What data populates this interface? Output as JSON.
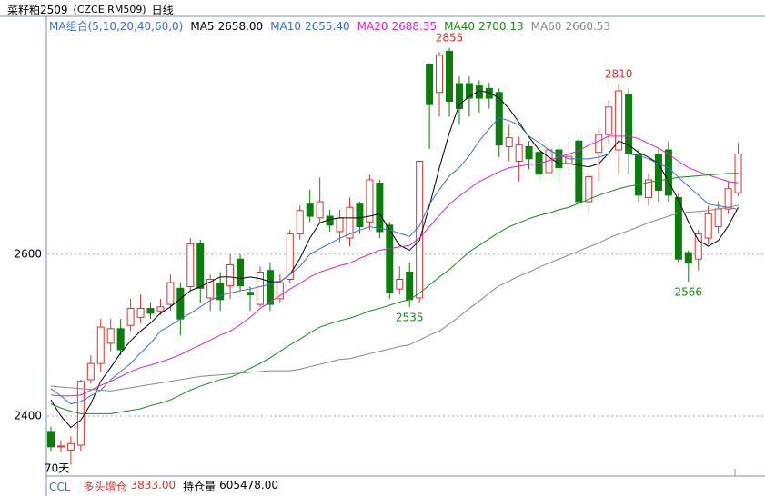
{
  "chart_data": {
    "type": "candlestick",
    "title": "菜籽粕2509",
    "subtitle": "(CZCE RM509)",
    "period": "日线",
    "indicator_group": "MA组合(5,10,20,40,60,0)",
    "days_label": "70天",
    "up_color": "#e0302e",
    "down_color": "#0b7d0b",
    "ylim": [
      2336,
      2875
    ],
    "yticks": [
      2400,
      2600
    ],
    "grid": true,
    "open": [
      2381,
      2362,
      2358,
      2364,
      2445,
      2465,
      2490,
      2508,
      2512,
      2522,
      2533,
      2530,
      2538,
      2558,
      2560,
      2613,
      2546,
      2564,
      2561,
      2594,
      2553,
      2538,
      2580,
      2545,
      2569,
      2625,
      2662,
      2645,
      2647,
      2628,
      2620,
      2662,
      2640,
      2688,
      2636,
      2557,
      2578,
      2546,
      2834,
      2800,
      2851,
      2811,
      2811,
      2808,
      2805,
      2800,
      2733,
      2715,
      2733,
      2726,
      2701,
      2729,
      2712,
      2740,
      2665,
      2726,
      2748,
      2729,
      2797,
      2724,
      2670,
      2724,
      2729,
      2670,
      2602,
      2594,
      2620,
      2634,
      2656,
      2676
    ],
    "high": [
      2387,
      2370,
      2375,
      2445,
      2475,
      2520,
      2520,
      2520,
      2545,
      2550,
      2540,
      2545,
      2575,
      2565,
      2620,
      2618,
      2575,
      2578,
      2600,
      2600,
      2560,
      2585,
      2590,
      2575,
      2630,
      2660,
      2680,
      2695,
      2655,
      2655,
      2670,
      2665,
      2698,
      2692,
      2640,
      2585,
      2590,
      2715,
      2836,
      2850,
      2855,
      2820,
      2820,
      2815,
      2812,
      2805,
      2760,
      2745,
      2740,
      2735,
      2740,
      2735,
      2740,
      2745,
      2700,
      2755,
      2790,
      2810,
      2805,
      2730,
      2700,
      2730,
      2740,
      2675,
      2605,
      2630,
      2660,
      2665,
      2690,
      2738
    ],
    "low": [
      2356,
      2355,
      2340,
      2356,
      2440,
      2455,
      2480,
      2475,
      2505,
      2515,
      2520,
      2525,
      2530,
      2500,
      2555,
      2540,
      2530,
      2530,
      2545,
      2555,
      2530,
      2535,
      2530,
      2540,
      2565,
      2618,
      2640,
      2640,
      2628,
      2615,
      2610,
      2625,
      2630,
      2620,
      2545,
      2550,
      2535,
      2540,
      2730,
      2770,
      2770,
      2760,
      2770,
      2775,
      2780,
      2720,
      2715,
      2690,
      2705,
      2690,
      2695,
      2690,
      2700,
      2660,
      2650,
      2690,
      2735,
      2700,
      2700,
      2665,
      2660,
      2665,
      2665,
      2590,
      2566,
      2580,
      2612,
      2625,
      2650,
      2672
    ],
    "close": [
      2362,
      2363,
      2366,
      2443,
      2465,
      2510,
      2508,
      2482,
      2533,
      2533,
      2527,
      2535,
      2565,
      2520,
      2613,
      2558,
      2569,
      2544,
      2587,
      2561,
      2550,
      2578,
      2538,
      2565,
      2625,
      2654,
      2647,
      2665,
      2636,
      2645,
      2658,
      2634,
      2692,
      2628,
      2553,
      2569,
      2544,
      2715,
      2785,
      2846,
      2789,
      2780,
      2793,
      2793,
      2793,
      2735,
      2744,
      2735,
      2718,
      2699,
      2729,
      2707,
      2721,
      2665,
      2696,
      2748,
      2782,
      2802,
      2724,
      2673,
      2692,
      2679,
      2673,
      2594,
      2589,
      2625,
      2650,
      2656,
      2681,
      2724
    ],
    "series": [
      {
        "name": "MA5",
        "color": "#000000",
        "value_label": "2658.00",
        "values": [
          2420,
          2400,
          2386,
          2395,
          2415,
          2443,
          2460,
          2478,
          2493,
          2505,
          2515,
          2527,
          2535,
          2545,
          2555,
          2560,
          2566,
          2572,
          2572,
          2570,
          2572,
          2570,
          2566,
          2566,
          2575,
          2595,
          2620,
          2639,
          2643,
          2645,
          2645,
          2645,
          2647,
          2650,
          2630,
          2611,
          2605,
          2617,
          2660,
          2707,
          2750,
          2785,
          2795,
          2802,
          2800,
          2793,
          2780,
          2763,
          2745,
          2729,
          2720,
          2712,
          2712,
          2710,
          2708,
          2712,
          2725,
          2740,
          2735,
          2726,
          2720,
          2712,
          2690,
          2667,
          2640,
          2617,
          2610,
          2617,
          2635,
          2658
        ]
      },
      {
        "name": "MA10",
        "color": "#3a6fd8",
        "value_label": "2655.40",
        "values": [
          2434,
          2425,
          2415,
          2418,
          2425,
          2432,
          2445,
          2455,
          2465,
          2478,
          2490,
          2505,
          2512,
          2520,
          2527,
          2535,
          2543,
          2549,
          2552,
          2555,
          2557,
          2560,
          2563,
          2566,
          2575,
          2585,
          2600,
          2607,
          2613,
          2620,
          2625,
          2630,
          2634,
          2632,
          2630,
          2626,
          2622,
          2635,
          2662,
          2680,
          2697,
          2707,
          2722,
          2740,
          2755,
          2769,
          2765,
          2760,
          2746,
          2738,
          2729,
          2723,
          2718,
          2718,
          2718,
          2720,
          2724,
          2724,
          2724,
          2722,
          2718,
          2712,
          2707,
          2695,
          2684,
          2673,
          2662,
          2660,
          2658,
          2655.4
        ]
      },
      {
        "name": "MA20",
        "color": "#e020c8",
        "value_label": "2688.35",
        "values": [
          2426,
          2425,
          2425,
          2426,
          2432,
          2438,
          2443,
          2449,
          2455,
          2460,
          2463,
          2467,
          2471,
          2476,
          2482,
          2488,
          2494,
          2500,
          2505,
          2513,
          2522,
          2533,
          2541,
          2549,
          2557,
          2564,
          2572,
          2578,
          2582,
          2586,
          2589,
          2595,
          2600,
          2605,
          2607,
          2609,
          2611,
          2620,
          2634,
          2648,
          2662,
          2672,
          2681,
          2690,
          2696,
          2702,
          2707,
          2709,
          2711,
          2712,
          2716,
          2720,
          2724,
          2728,
          2735,
          2740,
          2746,
          2746,
          2746,
          2743,
          2737,
          2731,
          2724,
          2715,
          2707,
          2702,
          2698,
          2694,
          2690,
          2688.35
        ]
      },
      {
        "name": "MA40",
        "color": "#1a8a1a",
        "value_label": "2700.13",
        "values": [
          2415,
          2410,
          2406,
          2403,
          2403,
          2403,
          2403,
          2405,
          2407,
          2409,
          2413,
          2416,
          2420,
          2426,
          2432,
          2437,
          2441,
          2445,
          2448,
          2453,
          2459,
          2465,
          2472,
          2480,
          2488,
          2495,
          2503,
          2510,
          2514,
          2518,
          2521,
          2525,
          2530,
          2533,
          2537,
          2541,
          2544,
          2552,
          2562,
          2572,
          2581,
          2592,
          2603,
          2611,
          2619,
          2627,
          2634,
          2639,
          2644,
          2648,
          2651,
          2655,
          2658,
          2663,
          2668,
          2673,
          2677,
          2681,
          2684,
          2686,
          2689,
          2691,
          2693,
          2695,
          2696,
          2697,
          2698,
          2699,
          2700,
          2700.13
        ]
      },
      {
        "name": "MA60",
        "color": "#888888",
        "value_label": "2660.53",
        "values": [
          2437,
          2436,
          2435,
          2434,
          2433,
          2432,
          2431,
          2433,
          2435,
          2437,
          2439,
          2441,
          2443,
          2445,
          2447,
          2449,
          2450,
          2451,
          2452,
          2453,
          2454,
          2455,
          2456,
          2456,
          2456,
          2458,
          2461,
          2464,
          2467,
          2470,
          2471,
          2474,
          2477,
          2480,
          2483,
          2486,
          2488,
          2494,
          2500,
          2505,
          2514,
          2523,
          2533,
          2542,
          2552,
          2561,
          2567,
          2573,
          2578,
          2584,
          2589,
          2594,
          2599,
          2604,
          2609,
          2614,
          2620,
          2625,
          2629,
          2634,
          2639,
          2643,
          2647,
          2651,
          2652,
          2653,
          2654,
          2656,
          2658,
          2660.53
        ]
      }
    ],
    "annotations": [
      {
        "x": 40,
        "value": 2855,
        "color": "#e0302e"
      },
      {
        "x": 57,
        "value": 2810,
        "color": "#e0302e"
      },
      {
        "x": 36,
        "value": 2535,
        "color": "#1a8a1a"
      },
      {
        "x": 64,
        "value": 2566,
        "color": "#1a8a1a"
      }
    ],
    "footer": {
      "name": "CCL",
      "items": [
        {
          "label": "多头增仓",
          "value": {
            "value": 3833,
            "label": "3833.00"
          },
          "color": "#e0302e"
        },
        {
          "label": "持仓量",
          "value": {
            "value": 605478,
            "label": "605478.00"
          },
          "color": "#000000"
        }
      ]
    }
  }
}
